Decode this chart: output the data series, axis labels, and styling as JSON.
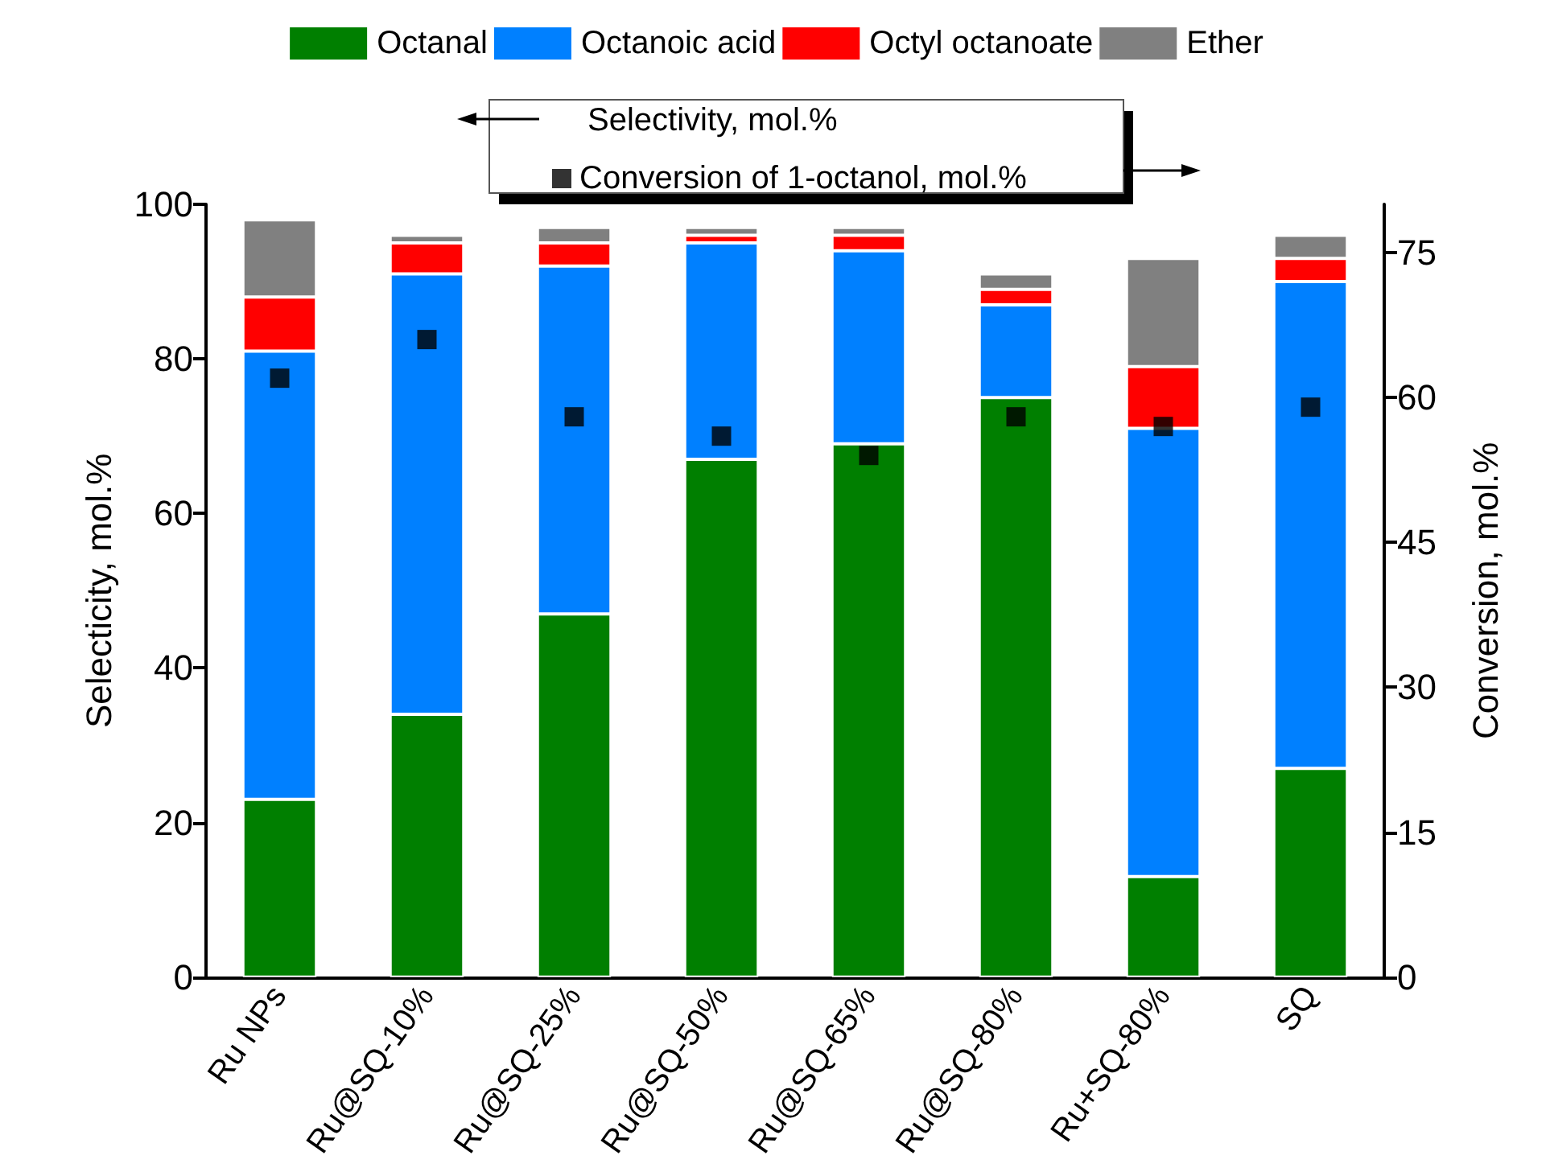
{
  "chart_data": {
    "type": "bar",
    "stacked": true,
    "categories": [
      "Ru NPs",
      "Ru@SQ-10%",
      "Ru@SQ-25%",
      "Ru@SQ-50%",
      "Ru@SQ-65%",
      "Ru@SQ-80%",
      "Ru+SQ-80%",
      "SQ"
    ],
    "ylabel": "Selecticity, mol.%",
    "y2label": "Conversion, mol.%",
    "ylim": [
      0,
      100
    ],
    "yticks": [
      0,
      20,
      40,
      60,
      80,
      100
    ],
    "y2lim": [
      0,
      80
    ],
    "y2ticks": [
      0,
      15,
      30,
      45,
      60,
      75
    ],
    "legend": "top",
    "grid": false,
    "annotations": [
      "Selectivity, mol.%"
    ],
    "series": [
      {
        "name": "Octanal",
        "color": "#007f00",
        "values": [
          23,
          34,
          47,
          67,
          69,
          75,
          13,
          27
        ]
      },
      {
        "name": "Octanoic acid",
        "color": "#0080ff",
        "values": [
          58,
          57,
          45,
          28,
          25,
          12,
          58,
          63
        ]
      },
      {
        "name": "Octyl octanoate",
        "color": "#ff0000",
        "values": [
          7,
          4,
          3,
          1,
          2,
          2,
          8,
          3
        ]
      },
      {
        "name": "Ether",
        "color": "#808080",
        "values": [
          10,
          1,
          2,
          1,
          1,
          2,
          14,
          3
        ]
      },
      {
        "name": "Conversion of 1-octanol, mol.%",
        "type": "scatter",
        "axis": "y2",
        "marker": "square",
        "color": "#000000",
        "values": [
          62,
          66,
          58,
          56,
          54,
          58,
          57,
          59
        ]
      }
    ]
  }
}
